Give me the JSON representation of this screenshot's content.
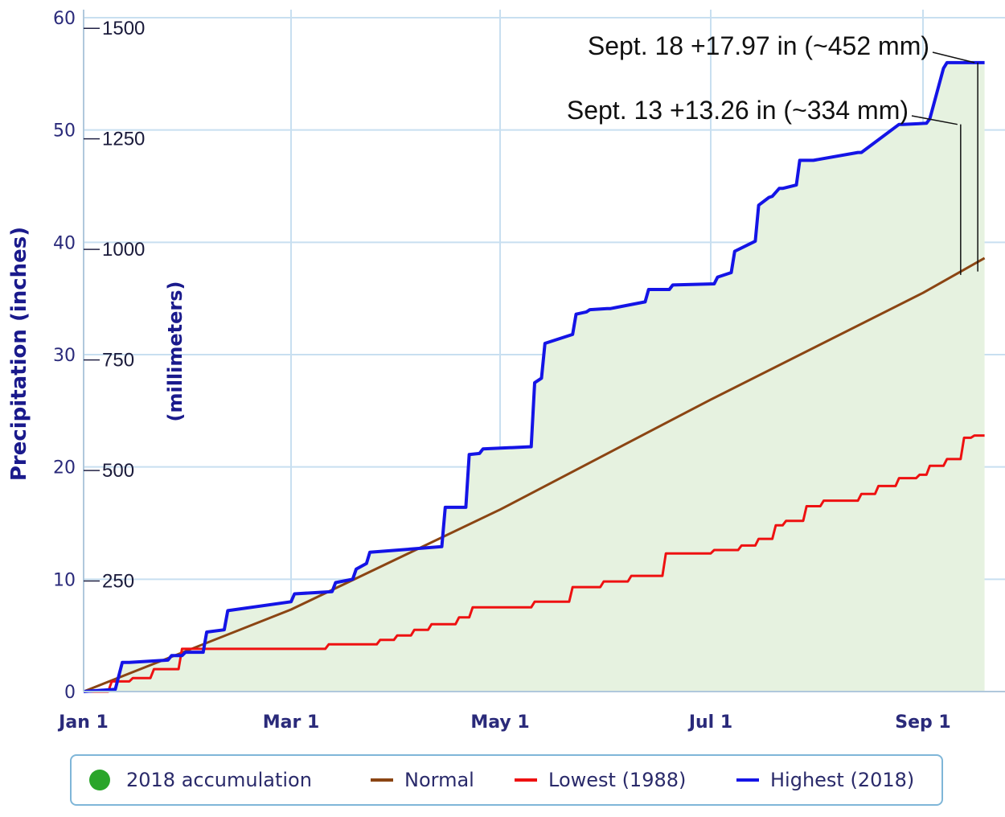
{
  "chart_data": {
    "type": "line",
    "title": "",
    "xlabel": "",
    "ylabel": "Precipitation (inches)",
    "ylabel_secondary": "(millimeters)",
    "x_ticks": [
      "Jan 1",
      "Mar 1",
      "May 1",
      "Jul 1",
      "Sep 1"
    ],
    "y_ticks_in": [
      0,
      10,
      20,
      30,
      40,
      50,
      60
    ],
    "y_ticks_mm": [
      250,
      500,
      750,
      1000,
      1250,
      1500
    ],
    "ylim": [
      0,
      60
    ],
    "xlim_days": [
      1,
      262
    ],
    "grid": true,
    "legend_position": "bottom",
    "legend": [
      "2018 accumulation",
      "Normal",
      "Lowest (1988)",
      "Highest (2018)"
    ],
    "colors": {
      "accumulation": "#2aa52a",
      "area_fill": "#e6f2e0",
      "normal": "#8b4513",
      "lowest": "#ee1111",
      "highest": "#1414e6",
      "grid": "#c8dff0",
      "axis_text": "#2a2a7a"
    },
    "series": [
      {
        "name": "Normal",
        "x_day": [
          1,
          60,
          121,
          182,
          244,
          262
        ],
        "values": [
          0,
          7.3,
          16.2,
          26.0,
          35.5,
          38.6
        ]
      },
      {
        "name": "Lowest (1988)",
        "x_day": [
          1,
          8,
          9,
          14,
          15,
          20,
          21,
          28,
          29,
          45,
          60,
          70,
          71,
          85,
          86,
          90,
          91,
          95,
          96,
          100,
          101,
          108,
          109,
          112,
          113,
          130,
          131,
          141,
          142,
          150,
          151,
          158,
          159,
          168,
          169,
          182,
          183,
          190,
          191,
          195,
          196,
          200,
          201,
          203,
          204,
          209,
          210,
          214,
          215,
          225,
          226,
          230,
          231,
          236,
          237,
          242,
          243,
          245,
          246,
          250,
          251,
          255,
          256,
          258,
          259,
          262
        ],
        "values": [
          0,
          0,
          0.9,
          0.9,
          1.2,
          1.2,
          2.0,
          2.0,
          3.8,
          3.8,
          3.8,
          3.8,
          4.2,
          4.2,
          4.6,
          4.6,
          5.0,
          5.0,
          5.5,
          5.5,
          6.0,
          6.0,
          6.6,
          6.6,
          7.5,
          7.5,
          8.0,
          8.0,
          9.3,
          9.3,
          9.8,
          9.8,
          10.3,
          10.3,
          12.3,
          12.3,
          12.6,
          12.6,
          13.0,
          13.0,
          13.6,
          13.6,
          14.8,
          14.8,
          15.2,
          15.2,
          16.5,
          16.5,
          17.0,
          17.0,
          17.6,
          17.6,
          18.3,
          18.3,
          19.0,
          19.0,
          19.3,
          19.3,
          20.1,
          20.1,
          20.7,
          20.7,
          22.6,
          22.6,
          22.8,
          22.8
        ]
      },
      {
        "name": "Highest (2018)",
        "x_day": [
          1,
          10,
          12,
          14,
          25,
          26,
          29,
          30,
          35,
          36,
          41,
          42,
          60,
          61,
          72,
          73,
          78,
          79,
          82,
          83,
          104,
          105,
          111,
          112,
          115,
          116,
          130,
          131,
          133,
          134,
          142,
          143,
          146,
          147,
          152,
          153,
          163,
          164,
          170,
          171,
          183,
          184,
          188,
          189,
          195,
          196,
          199,
          200,
          202,
          203,
          207,
          208,
          211,
          212,
          225,
          226,
          237,
          238,
          245,
          246,
          250,
          251,
          253,
          254,
          256,
          257,
          262
        ],
        "values": [
          0,
          0.2,
          2.6,
          2.6,
          2.8,
          3.2,
          3.2,
          3.5,
          3.5,
          5.3,
          5.5,
          7.2,
          8.0,
          8.7,
          8.9,
          9.7,
          10.0,
          10.9,
          11.4,
          12.4,
          12.9,
          16.4,
          16.4,
          21.1,
          21.2,
          21.6,
          21.8,
          27.5,
          27.9,
          31.0,
          31.8,
          33.6,
          33.8,
          34.0,
          34.1,
          34.1,
          34.7,
          35.8,
          35.8,
          36.2,
          36.3,
          36.9,
          37.3,
          39.2,
          40.1,
          43.3,
          44.0,
          44.1,
          44.8,
          44.8,
          45.1,
          47.3,
          47.3,
          47.3,
          48.0,
          48.0,
          50.5,
          50.5,
          50.6,
          51.0,
          55.5,
          56.0,
          56.0,
          56.0,
          56.0,
          56.0,
          56.0
        ]
      }
    ],
    "annotations": [
      {
        "text": "Sept. 18 +17.97 in (~452 mm)",
        "x_day": 260,
        "y": 56.0,
        "baseline": 37.4
      },
      {
        "text": "Sept. 13 +13.26 in (~334 mm)",
        "x_day": 255,
        "y": 50.5,
        "baseline": 37.1
      }
    ]
  }
}
